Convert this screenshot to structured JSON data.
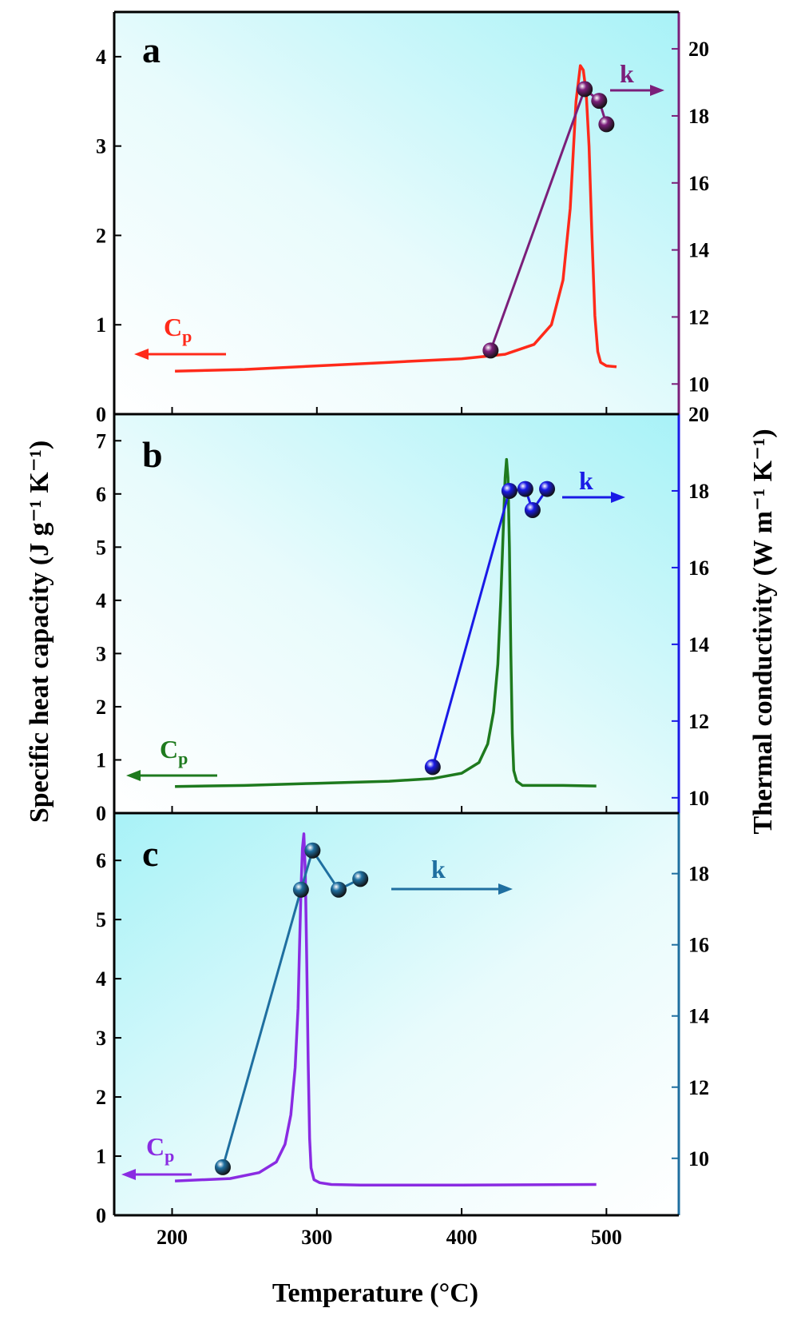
{
  "figure": {
    "left_axis_title": "Specific heat capacity (J g⁻¹ K⁻¹)",
    "right_axis_title": "Thermal conductivity (W m⁻¹ K⁻¹)",
    "x_axis_title": "Temperature (°C)"
  },
  "chart_data": [
    {
      "type": "line",
      "panel": "a",
      "xlim": [
        160,
        550
      ],
      "x_ticks": [
        200,
        300,
        400,
        500
      ],
      "y_left": {
        "lim": [
          0,
          4.5
        ],
        "ticks": [
          0,
          1,
          2,
          3,
          4
        ]
      },
      "y_right": {
        "lim": [
          9.1,
          21.1
        ],
        "ticks": [
          10,
          12,
          14,
          16,
          18,
          20
        ],
        "color": "#7B1F7A"
      },
      "cp_label": "C",
      "cp_sub": "p",
      "k_label": "k",
      "series": [
        {
          "name": "Cp",
          "axis": "left",
          "color": "#FF2A1A",
          "marker": "none",
          "x": [
            202,
            250,
            300,
            350,
            400,
            430,
            450,
            462,
            470,
            475,
            479,
            482,
            484,
            486,
            488,
            490,
            492,
            494,
            496,
            500,
            507
          ],
          "y": [
            0.48,
            0.5,
            0.54,
            0.58,
            0.62,
            0.67,
            0.78,
            1.0,
            1.5,
            2.3,
            3.5,
            3.9,
            3.85,
            3.6,
            3.0,
            2.0,
            1.1,
            0.7,
            0.58,
            0.54,
            0.53
          ]
        },
        {
          "name": "k",
          "axis": "right",
          "color": "#7B1F7A",
          "marker": "sphere",
          "x": [
            420,
            485,
            495,
            500
          ],
          "y": [
            11.0,
            18.8,
            18.45,
            17.75
          ]
        }
      ]
    },
    {
      "type": "line",
      "panel": "b",
      "xlim": [
        160,
        550
      ],
      "x_ticks": [
        200,
        300,
        400,
        500
      ],
      "y_left": {
        "lim": [
          0,
          7.5
        ],
        "ticks": [
          0,
          1,
          2,
          3,
          4,
          5,
          6,
          7
        ]
      },
      "y_right": {
        "lim": [
          9.6,
          20.0
        ],
        "ticks": [
          10,
          12,
          14,
          16,
          18,
          20
        ],
        "color": "#1A1AE6"
      },
      "cp_label": "C",
      "cp_sub": "p",
      "k_label": "k",
      "series": [
        {
          "name": "Cp",
          "axis": "left",
          "color": "#1E7A1E",
          "marker": "none",
          "x": [
            202,
            250,
            300,
            350,
            380,
            400,
            412,
            418,
            422,
            425,
            427,
            429,
            430,
            431,
            432,
            433,
            434,
            435,
            436,
            438,
            442,
            450,
            470,
            493
          ],
          "y": [
            0.5,
            0.52,
            0.56,
            0.6,
            0.65,
            0.75,
            0.95,
            1.3,
            1.9,
            2.8,
            4.0,
            5.5,
            6.3,
            6.65,
            6.3,
            5.0,
            3.0,
            1.5,
            0.8,
            0.6,
            0.52,
            0.52,
            0.52,
            0.51
          ]
        },
        {
          "name": "k",
          "axis": "right",
          "color": "#1A1AE6",
          "marker": "sphere",
          "x": [
            380,
            433,
            444,
            449,
            459
          ],
          "y": [
            10.8,
            18.0,
            18.05,
            17.5,
            18.05
          ]
        }
      ]
    },
    {
      "type": "line",
      "panel": "c",
      "xlim": [
        160,
        550
      ],
      "x_ticks": [
        200,
        300,
        400,
        500
      ],
      "y_left": {
        "lim": [
          0,
          6.8
        ],
        "ticks": [
          0,
          1,
          2,
          3,
          4,
          5,
          6
        ]
      },
      "y_right": {
        "lim": [
          8.4,
          19.7
        ],
        "ticks": [
          10,
          12,
          14,
          16,
          18
        ],
        "color": "#1F6FA0"
      },
      "cp_label": "C",
      "cp_sub": "p",
      "k_label": "k",
      "series": [
        {
          "name": "Cp",
          "axis": "left",
          "color": "#8A2BE2",
          "marker": "none",
          "x": [
            202,
            240,
            260,
            272,
            278,
            282,
            285,
            287,
            288,
            289,
            290,
            291,
            292,
            293,
            294,
            295,
            296,
            298,
            302,
            310,
            330,
            400,
            493
          ],
          "y": [
            0.58,
            0.62,
            0.72,
            0.9,
            1.2,
            1.7,
            2.5,
            3.5,
            4.5,
            5.5,
            6.2,
            6.45,
            5.8,
            4.3,
            2.6,
            1.3,
            0.8,
            0.6,
            0.55,
            0.52,
            0.51,
            0.51,
            0.52
          ]
        },
        {
          "name": "k",
          "axis": "right",
          "color": "#1F6FA0",
          "marker": "sphere",
          "x": [
            235,
            289,
            297,
            315,
            330
          ],
          "y": [
            9.75,
            17.55,
            18.65,
            17.55,
            17.85
          ]
        }
      ]
    }
  ]
}
